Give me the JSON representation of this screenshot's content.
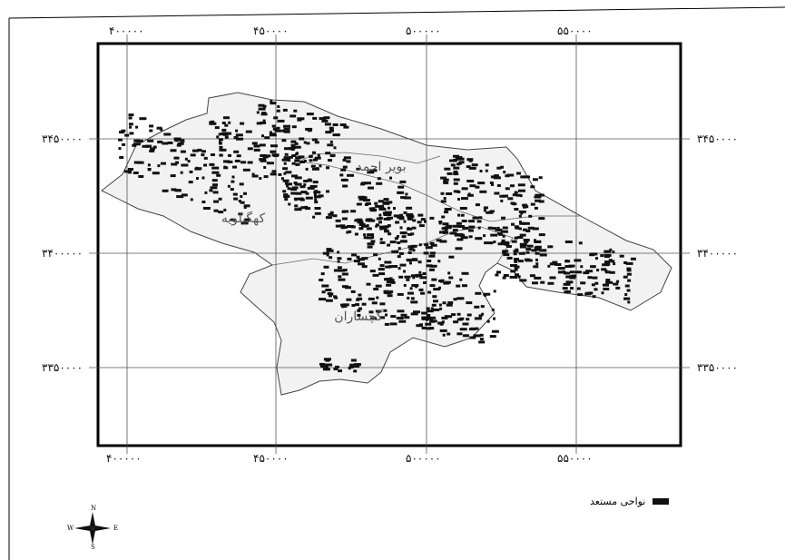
{
  "map": {
    "x_ticks": [
      "۴۰۰۰۰۰",
      "۴۵۰۰۰۰",
      "۵۰۰۰۰۰",
      "۵۵۰۰۰۰"
    ],
    "y_ticks": [
      "۳۴۵۰۰۰۰",
      "۳۴۰۰۰۰۰",
      "۳۳۵۰۰۰۰"
    ],
    "regions": {
      "kohgiluyeh": "کهگیلویه",
      "gachsaran": "گچساران",
      "boyer_ahmad": "بویر احمد"
    },
    "colors": {
      "land": "#f2f2f2",
      "suitable": "#111111",
      "frame": "#000000",
      "grid": "#555555"
    }
  },
  "legend": {
    "label": "نواحی مستعد"
  },
  "compass": {
    "n": "N",
    "s": "S",
    "e": "E",
    "w": "W"
  }
}
